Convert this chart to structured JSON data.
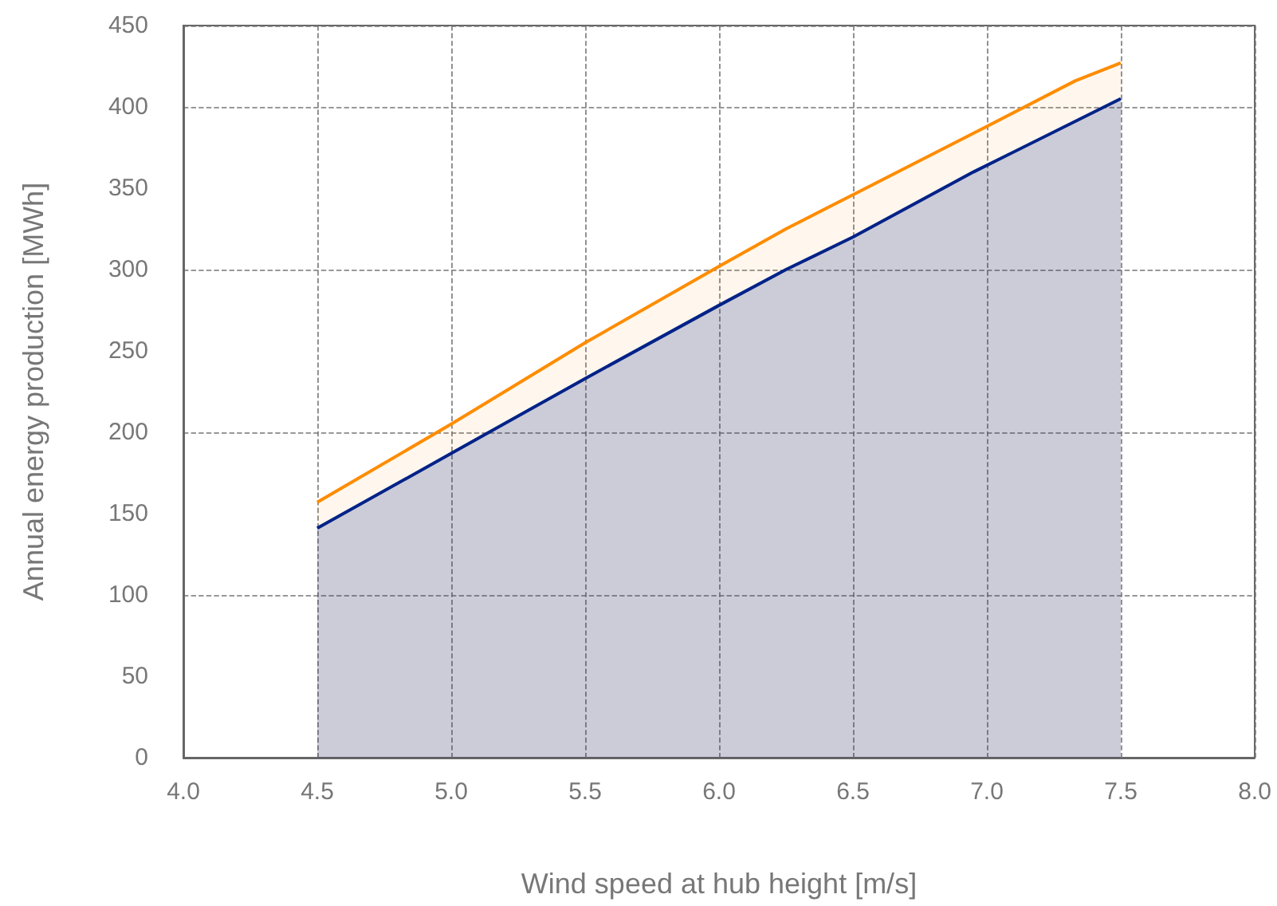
{
  "chart_data": {
    "type": "area",
    "xlabel": "Wind speed at hub height [m/s]",
    "ylabel": "Annual energy production [MWh]",
    "xlim": [
      4,
      8
    ],
    "xticks": [
      {
        "value": 4,
        "label": "4.0"
      },
      {
        "value": 4.5,
        "label": "4.5"
      },
      {
        "value": 5,
        "label": "5.0"
      },
      {
        "value": 5.5,
        "label": "5.5"
      },
      {
        "value": 6,
        "label": "6.0"
      },
      {
        "value": 6.5,
        "label": "6.5"
      },
      {
        "value": 7,
        "label": "7.0"
      },
      {
        "value": 7.5,
        "label": "7.5"
      },
      {
        "value": 8,
        "label": "8.0"
      }
    ],
    "ylim": [
      0,
      450
    ],
    "yticks": [
      0,
      50,
      100,
      150,
      200,
      250,
      300,
      350,
      400,
      450
    ],
    "grid": true,
    "marker": "none",
    "line_style": "solid",
    "series": [
      {
        "color": "#ff8c00",
        "x": [
          4.5,
          5.0,
          5.5,
          6.0,
          6.25,
          6.5,
          7.0,
          7.33,
          7.5
        ],
        "values": [
          157,
          205,
          255,
          302,
          325,
          346,
          388,
          416,
          427
        ]
      },
      {
        "color": "#002288",
        "x": [
          4.5,
          5.0,
          5.5,
          6.0,
          6.25,
          6.5,
          6.95,
          7.5
        ],
        "values": [
          141,
          187,
          233,
          278,
          300,
          320,
          360,
          405
        ]
      }
    ]
  }
}
